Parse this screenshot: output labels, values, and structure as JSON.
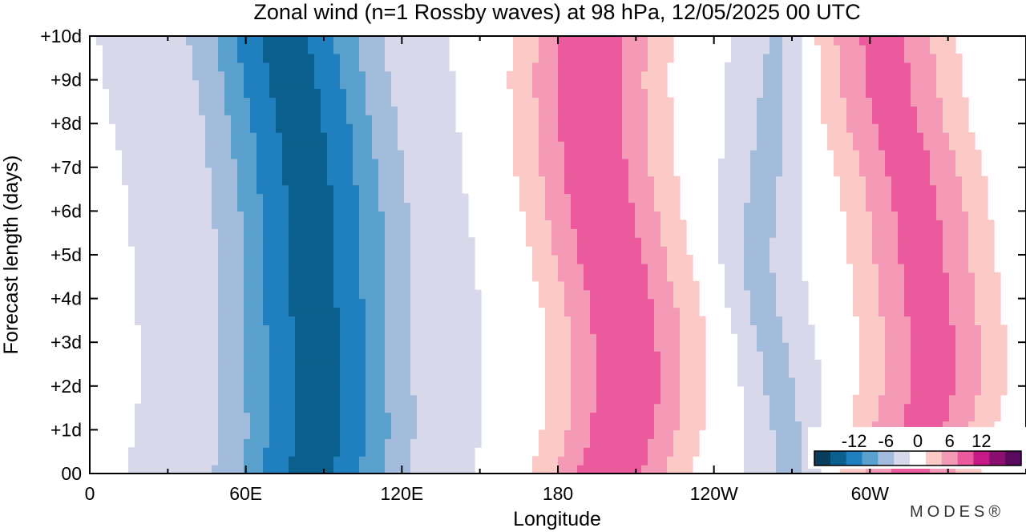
{
  "chart_data": {
    "type": "heatmap",
    "title": "Zonal wind (n=1 Rossby waves) at 98 hPa,  12/05/2025  00 UTC",
    "xlabel": "Longitude",
    "ylabel": "Forecast length (days)",
    "x_ticks": [
      "0",
      "60E",
      "120E",
      "180",
      "120W",
      "60W"
    ],
    "x_tick_values": [
      0,
      60,
      120,
      180,
      240,
      300
    ],
    "xlim": [
      0,
      360
    ],
    "y_ticks": [
      "00",
      "+1d",
      "+2d",
      "+3d",
      "+4d",
      "+5d",
      "+6d",
      "+7d",
      "+8d",
      "+9d",
      "+10d"
    ],
    "ylim": [
      0,
      10
    ],
    "colorbar": {
      "tick_labels": [
        "-12",
        "-6",
        "0",
        "6",
        "12"
      ],
      "tick_values": [
        -12,
        -6,
        0,
        6,
        12
      ],
      "levels": [
        -15,
        -12,
        -9,
        -6,
        -3,
        0,
        3,
        6,
        9,
        12,
        15
      ],
      "colors": [
        "#083d5c",
        "#0b5f8c",
        "#1f7fbf",
        "#5aa0cc",
        "#a3bcdc",
        "#d7d9ea",
        "#ffffff",
        "#fbc9c6",
        "#f59ab6",
        "#ec5a9e",
        "#c81a86",
        "#8a0f70",
        "#5a0a5c"
      ]
    },
    "field_description_days": [
      0,
      1,
      2,
      3,
      4,
      5,
      6,
      7,
      8,
      9,
      10
    ],
    "features": [
      {
        "name": "negative band",
        "sign": -1,
        "center_lon_by_day": [
          85,
          88,
          87,
          87,
          86,
          86,
          85,
          83,
          81,
          78,
          75
        ],
        "width_deg": 48,
        "peak": -13
      },
      {
        "name": "positive band A",
        "sign": 1,
        "center_lon_by_day": [
          200,
          205,
          207,
          206,
          204,
          200,
          197,
          194,
          193,
          192,
          193
        ],
        "width_deg": 42,
        "peak": 11
      },
      {
        "name": "positive band B",
        "sign": 1,
        "center_lon_by_day": [
          315,
          320,
          324,
          324,
          322,
          320,
          318,
          315,
          310,
          307,
          305
        ],
        "width_deg": 40,
        "peak": 10
      },
      {
        "name": "weak negative C",
        "sign": -1,
        "center_lon_by_day": [
          270,
          268,
          265,
          262,
          258,
          256,
          258,
          260,
          262,
          264,
          265
        ],
        "width_deg": 18,
        "peak": -4
      }
    ]
  },
  "watermark": "MODES®"
}
